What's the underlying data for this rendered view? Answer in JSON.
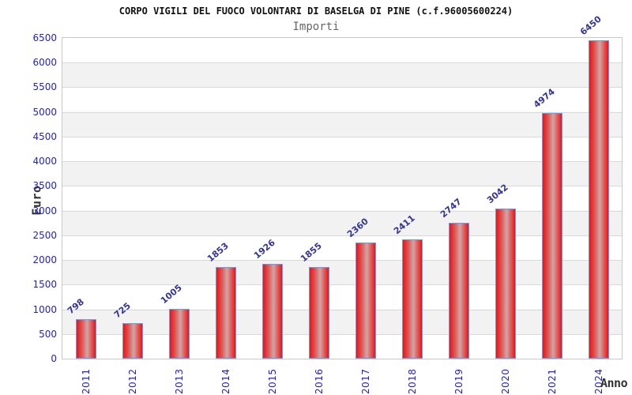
{
  "header": {
    "title": "CORPO VIGILI DEL FUOCO VOLONTARI DI BASELGA DI PINE (c.f.96005600224)",
    "subtitle": "Importi"
  },
  "chart_data": {
    "type": "bar",
    "title": "CORPO VIGILI DEL FUOCO VOLONTARI DI BASELGA DI PINE (c.f.96005600224)",
    "subtitle": "Importi",
    "categories": [
      "2011",
      "2012",
      "2013",
      "2014",
      "2015",
      "2016",
      "2017",
      "2018",
      "2019",
      "2020",
      "2021",
      "2024"
    ],
    "values": [
      798,
      725,
      1005,
      1853,
      1926,
      1855,
      2360,
      2411,
      2747,
      3042,
      4974,
      6450
    ],
    "xlabel": "Anno",
    "ylabel": "Euro",
    "ylim": [
      0,
      6500
    ],
    "ytick_step": 500,
    "grid": "horizontal-bands-alternating",
    "legend_position": "none",
    "colors": {
      "tick_label": "#2222cc",
      "value_label": "#333399",
      "bar_edge": "#ee1212",
      "bar_center": "#d4a4a4",
      "bar_border": "#64a0f2",
      "band_gray": "#f2f2f2",
      "gridline": "#d9d9d9",
      "title": "#111111",
      "subtitle": "#666666",
      "axis_label": "#333333",
      "plot_border": "#c9c9c9"
    }
  }
}
